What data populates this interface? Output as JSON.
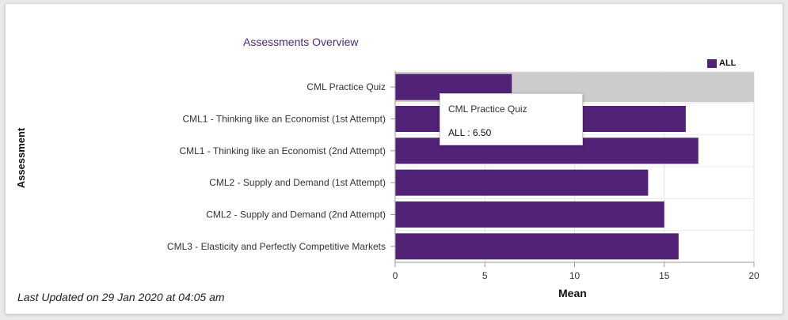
{
  "chart_data": {
    "type": "bar",
    "orientation": "horizontal",
    "title": "Assessments Overview",
    "xlabel": "Mean",
    "ylabel": "Assessment",
    "categories": [
      "CML Practice Quiz",
      "CML1 - Thinking like an Economist (1st Attempt)",
      "CML1 - Thinking like an Economist (2nd Attempt)",
      "CML2 - Supply and Demand (1st Attempt)",
      "CML2 - Supply and Demand (2nd Attempt)",
      "CML3 - Elasticity and Perfectly Competitive Markets"
    ],
    "series": [
      {
        "name": "ALL",
        "values": [
          6.5,
          16.2,
          16.9,
          14.1,
          15.0,
          15.8
        ],
        "color": "#522276"
      }
    ],
    "xlim": [
      0,
      20
    ],
    "xticks": [
      0,
      5,
      10,
      15,
      20
    ],
    "grid": true,
    "legend": "top-right",
    "highlight_color": "#cccccc",
    "highlighted_index": 0
  },
  "tooltip": {
    "title": "CML Practice Quiz",
    "value_text": "ALL : 6.50"
  },
  "footer": {
    "last_updated": "Last Updated on 29 Jan 2020 at 04:05 am"
  }
}
